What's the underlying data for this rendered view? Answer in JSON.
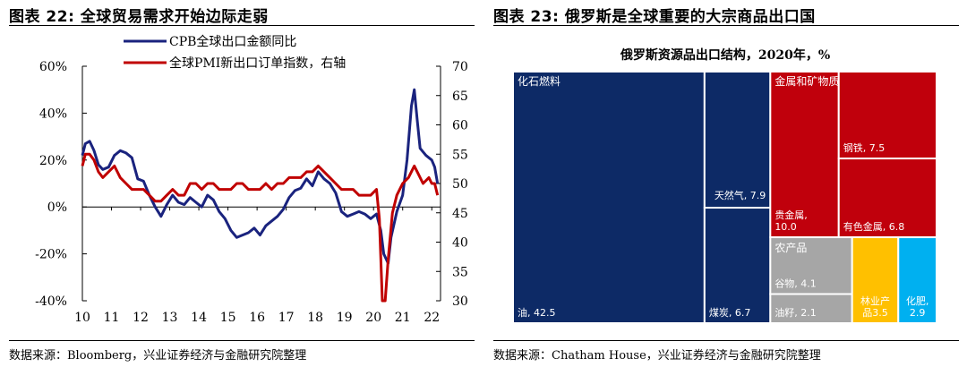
{
  "left": {
    "figure_title": "图表 22: 全球贸易需求开始边际走弱",
    "source": "数据来源：Bloomberg，兴业证券经济与金融研究院整理"
  },
  "right": {
    "figure_title": "图表 23: 俄罗斯是全球重要的大宗商品出口国",
    "source": "数据来源：Chatham House，兴业证券经济与金融研究院整理"
  },
  "colors": {
    "navy": "#1a237e",
    "red": "#c00000",
    "tm_navy": "#0d2a66",
    "tm_red": "#c0000c",
    "tm_gray": "#a6a6a6",
    "tm_gold": "#ffc000",
    "tm_cyan": "#00b0f0"
  },
  "chart_data": [
    {
      "type": "line",
      "title": "",
      "x_tick_labels": [
        "10",
        "11",
        "12",
        "13",
        "14",
        "15",
        "16",
        "17",
        "18",
        "19",
        "20",
        "21",
        "22"
      ],
      "y_left": {
        "ticks": [
          "-40%",
          "-20%",
          "0%",
          "20%",
          "40%",
          "60%"
        ],
        "min": -40,
        "max": 60
      },
      "y_right": {
        "ticks": [
          "30",
          "35",
          "40",
          "45",
          "50",
          "55",
          "60",
          "65",
          "70"
        ],
        "min": 30,
        "max": 70
      },
      "legend_position": "top-center",
      "series": [
        {
          "name": "CPB全球出口金额同比",
          "axis": "left",
          "color": "#1a237e",
          "x": [
            2010.0,
            2010.1,
            2010.25,
            2010.4,
            2010.55,
            2010.7,
            2010.9,
            2011.1,
            2011.3,
            2011.5,
            2011.7,
            2011.9,
            2012.1,
            2012.3,
            2012.5,
            2012.7,
            2012.9,
            2013.1,
            2013.3,
            2013.5,
            2013.7,
            2013.9,
            2014.1,
            2014.3,
            2014.5,
            2014.7,
            2014.9,
            2015.1,
            2015.3,
            2015.5,
            2015.7,
            2015.9,
            2016.1,
            2016.3,
            2016.5,
            2016.7,
            2016.9,
            2017.1,
            2017.3,
            2017.5,
            2017.7,
            2017.9,
            2018.1,
            2018.3,
            2018.5,
            2018.7,
            2018.9,
            2019.1,
            2019.3,
            2019.5,
            2019.7,
            2019.9,
            2020.1,
            2020.25,
            2020.35,
            2020.5,
            2020.6,
            2020.8,
            2021.0,
            2021.15,
            2021.3,
            2021.4,
            2021.5,
            2021.6,
            2021.8,
            2022.0,
            2022.1,
            2022.2
          ],
          "y": [
            22,
            27,
            28,
            24,
            18,
            16,
            17,
            22,
            24,
            23,
            21,
            12,
            11,
            5,
            0,
            -4,
            1,
            5,
            2,
            1,
            4,
            2,
            0,
            5,
            3,
            -2,
            -5,
            -10,
            -13,
            -12,
            -11,
            -9,
            -12,
            -8,
            -6,
            -4,
            -1,
            4,
            7,
            8,
            12,
            9,
            15,
            12,
            10,
            6,
            -2,
            -4,
            -3,
            -2,
            -3,
            -5,
            -3,
            -10,
            -20,
            -24,
            -13,
            -2,
            5,
            20,
            43,
            50,
            37,
            25,
            22,
            20,
            17,
            10
          ]
        },
        {
          "name": "全球PMI新出口订单指数，右轴",
          "axis": "right",
          "color": "#c00000",
          "x": [
            2010.0,
            2010.1,
            2010.25,
            2010.4,
            2010.55,
            2010.7,
            2010.9,
            2011.1,
            2011.3,
            2011.5,
            2011.7,
            2011.9,
            2012.1,
            2012.3,
            2012.5,
            2012.7,
            2012.9,
            2013.1,
            2013.3,
            2013.5,
            2013.7,
            2013.9,
            2014.1,
            2014.3,
            2014.5,
            2014.7,
            2014.9,
            2015.1,
            2015.3,
            2015.5,
            2015.7,
            2015.9,
            2016.1,
            2016.3,
            2016.5,
            2016.7,
            2016.9,
            2017.1,
            2017.3,
            2017.5,
            2017.7,
            2017.9,
            2018.1,
            2018.3,
            2018.5,
            2018.7,
            2018.9,
            2019.1,
            2019.3,
            2019.5,
            2019.7,
            2019.9,
            2020.1,
            2020.2,
            2020.3,
            2020.4,
            2020.5,
            2020.65,
            2020.8,
            2021.0,
            2021.2,
            2021.4,
            2021.5,
            2021.7,
            2021.9,
            2022.0,
            2022.1,
            2022.2
          ],
          "y": [
            53,
            55,
            55,
            54,
            52,
            51,
            52,
            53,
            51,
            50,
            49,
            49,
            49,
            48,
            47,
            47,
            48,
            49,
            48,
            48,
            50,
            50,
            49,
            50,
            50,
            49,
            49,
            49,
            50,
            50,
            49,
            49,
            49,
            50,
            49,
            50,
            50,
            51,
            51,
            51,
            52,
            52,
            53,
            52,
            51,
            50,
            49,
            49,
            49,
            48,
            48,
            48,
            49,
            44,
            30,
            30,
            37,
            45,
            48,
            50,
            51,
            53,
            52,
            50,
            51,
            50,
            50,
            48
          ]
        }
      ]
    },
    {
      "type": "treemap",
      "title": "俄罗斯资源品出口结构，2020年，%",
      "groups": [
        {
          "name": "化石燃料",
          "color": "#0d2a66",
          "items": [
            {
              "label": "油",
              "value": 42.5
            },
            {
              "label": "天然气",
              "value": 7.9
            },
            {
              "label": "煤炭",
              "value": 6.7
            }
          ]
        },
        {
          "name": "金属和矿物质",
          "color": "#c0000c",
          "items": [
            {
              "label": "贵金属",
              "value": 10.0
            },
            {
              "label": "钢铁",
              "value": 7.5
            },
            {
              "label": "有色金属",
              "value": 6.8
            }
          ]
        },
        {
          "name": "农产品",
          "color": "#a6a6a6",
          "items": [
            {
              "label": "谷物",
              "value": 4.1
            },
            {
              "label": "油籽",
              "value": 2.1
            }
          ]
        },
        {
          "name": "林业产品",
          "color": "#ffc000",
          "items": [
            {
              "label": "林业产品",
              "value": 3.5
            }
          ]
        },
        {
          "name": "化肥",
          "color": "#00b0f0",
          "items": [
            {
              "label": "化肥",
              "value": 2.9
            }
          ]
        }
      ]
    }
  ]
}
